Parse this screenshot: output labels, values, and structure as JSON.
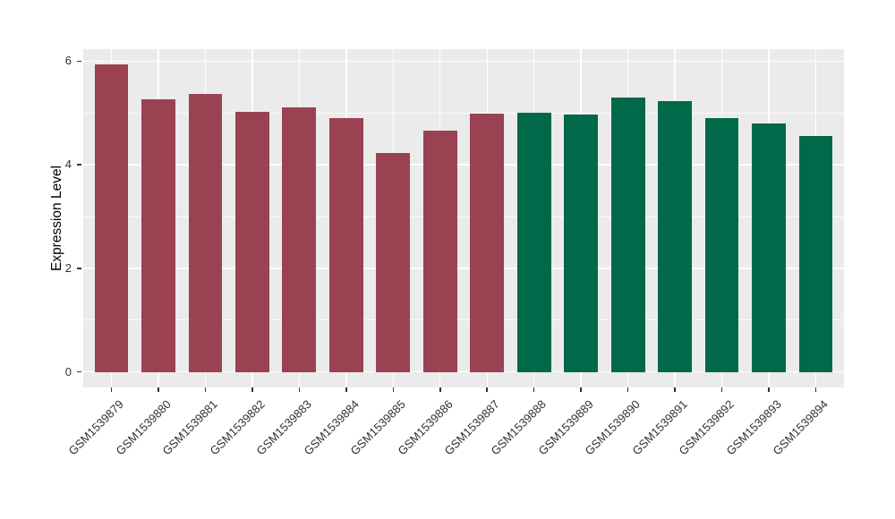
{
  "figure": {
    "background": "#FFFFFF",
    "panel_background": "#EBEBEB",
    "gridline_color": "#FFFFFF",
    "axis_text_color": "#303030",
    "axis_title_color": "#000000",
    "group_colors": {
      "left_group": "#9B4252",
      "right_group": "#00694A"
    }
  },
  "chart_data": {
    "type": "bar",
    "title": "",
    "xlabel": "",
    "ylabel": "Expression Level",
    "ylim": [
      0,
      6
    ],
    "y_ticks_major": [
      0,
      2,
      4,
      6
    ],
    "y_ticks_minor": [
      1,
      3,
      5
    ],
    "grid": true,
    "legend_position": "none",
    "x_tick_angle": 45,
    "categories": [
      "GSM1539879",
      "GSM1539880",
      "GSM1539881",
      "GSM1539882",
      "GSM1539883",
      "GSM1539884",
      "GSM1539885",
      "GSM1539886",
      "GSM1539887",
      "GSM1539888",
      "GSM1539889",
      "GSM1539890",
      "GSM1539891",
      "GSM1539892",
      "GSM1539893",
      "GSM1539894"
    ],
    "values": [
      5.93,
      5.27,
      5.37,
      5.02,
      5.11,
      4.9,
      4.22,
      4.65,
      4.98,
      5.0,
      4.97,
      5.29,
      5.23,
      4.9,
      4.8,
      4.56
    ],
    "bar_colors": [
      "#9B4252",
      "#9B4252",
      "#9B4252",
      "#9B4252",
      "#9B4252",
      "#9B4252",
      "#9B4252",
      "#9B4252",
      "#9B4252",
      "#00694A",
      "#00694A",
      "#00694A",
      "#00694A",
      "#00694A",
      "#00694A",
      "#00694A"
    ]
  }
}
